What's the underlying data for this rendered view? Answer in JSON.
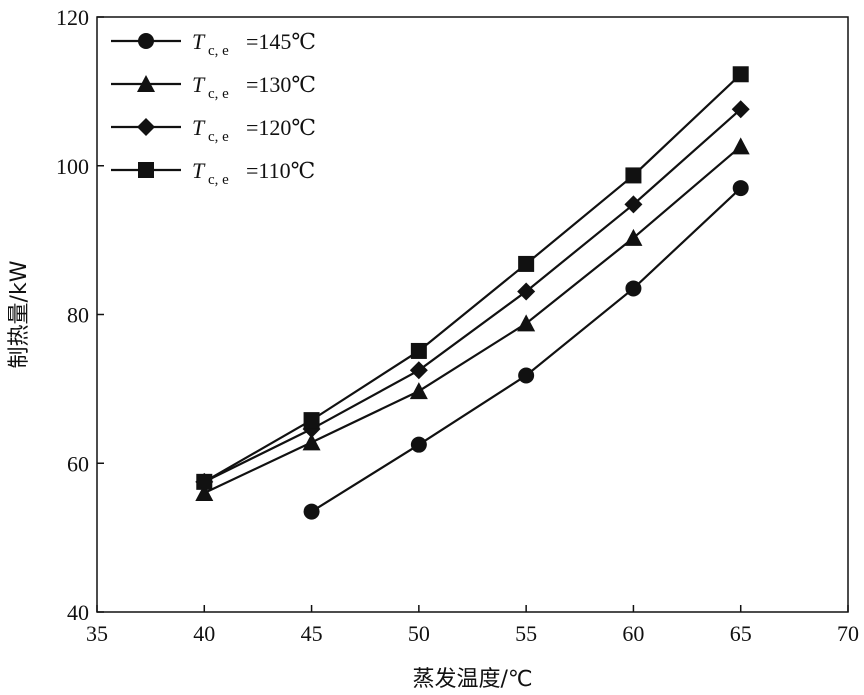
{
  "chart_data": {
    "type": "line",
    "title": "",
    "xlabel": "蒸发温度/℃",
    "ylabel": "制热量/kW",
    "xlim": [
      35,
      70
    ],
    "ylim": [
      40,
      120
    ],
    "xticks": [
      35,
      40,
      45,
      50,
      55,
      60,
      65,
      70
    ],
    "yticks": [
      40,
      60,
      80,
      100,
      120
    ],
    "grid": false,
    "legend_position": "top-left",
    "series": [
      {
        "name": "Tc,e=145℃",
        "label_main": "T",
        "label_sub": "c, e",
        "label_rest": "=145℃",
        "marker": "circle",
        "x": [
          45,
          50,
          55,
          60,
          65
        ],
        "y": [
          53.5,
          62.5,
          71.8,
          83.5,
          97.0
        ]
      },
      {
        "name": "Tc,e=130℃",
        "label_main": "T",
        "label_sub": "c, e",
        "label_rest": "=130℃",
        "marker": "triangle",
        "x": [
          40,
          45,
          50,
          55,
          60,
          65
        ],
        "y": [
          56.0,
          62.8,
          69.7,
          78.8,
          90.3,
          102.6
        ]
      },
      {
        "name": "Tc,e=120℃",
        "label_main": "T",
        "label_sub": "c, e",
        "label_rest": "=120℃",
        "marker": "diamond",
        "x": [
          40,
          45,
          50,
          55,
          60,
          65
        ],
        "y": [
          57.5,
          64.6,
          72.5,
          83.1,
          94.8,
          107.6
        ]
      },
      {
        "name": "Tc,e=110℃",
        "label_main": "T",
        "label_sub": "c, e",
        "label_rest": "=110℃",
        "marker": "square",
        "x": [
          40,
          45,
          50,
          55,
          60,
          65
        ],
        "y": [
          57.5,
          65.8,
          75.1,
          86.8,
          98.7,
          112.3
        ]
      }
    ]
  }
}
